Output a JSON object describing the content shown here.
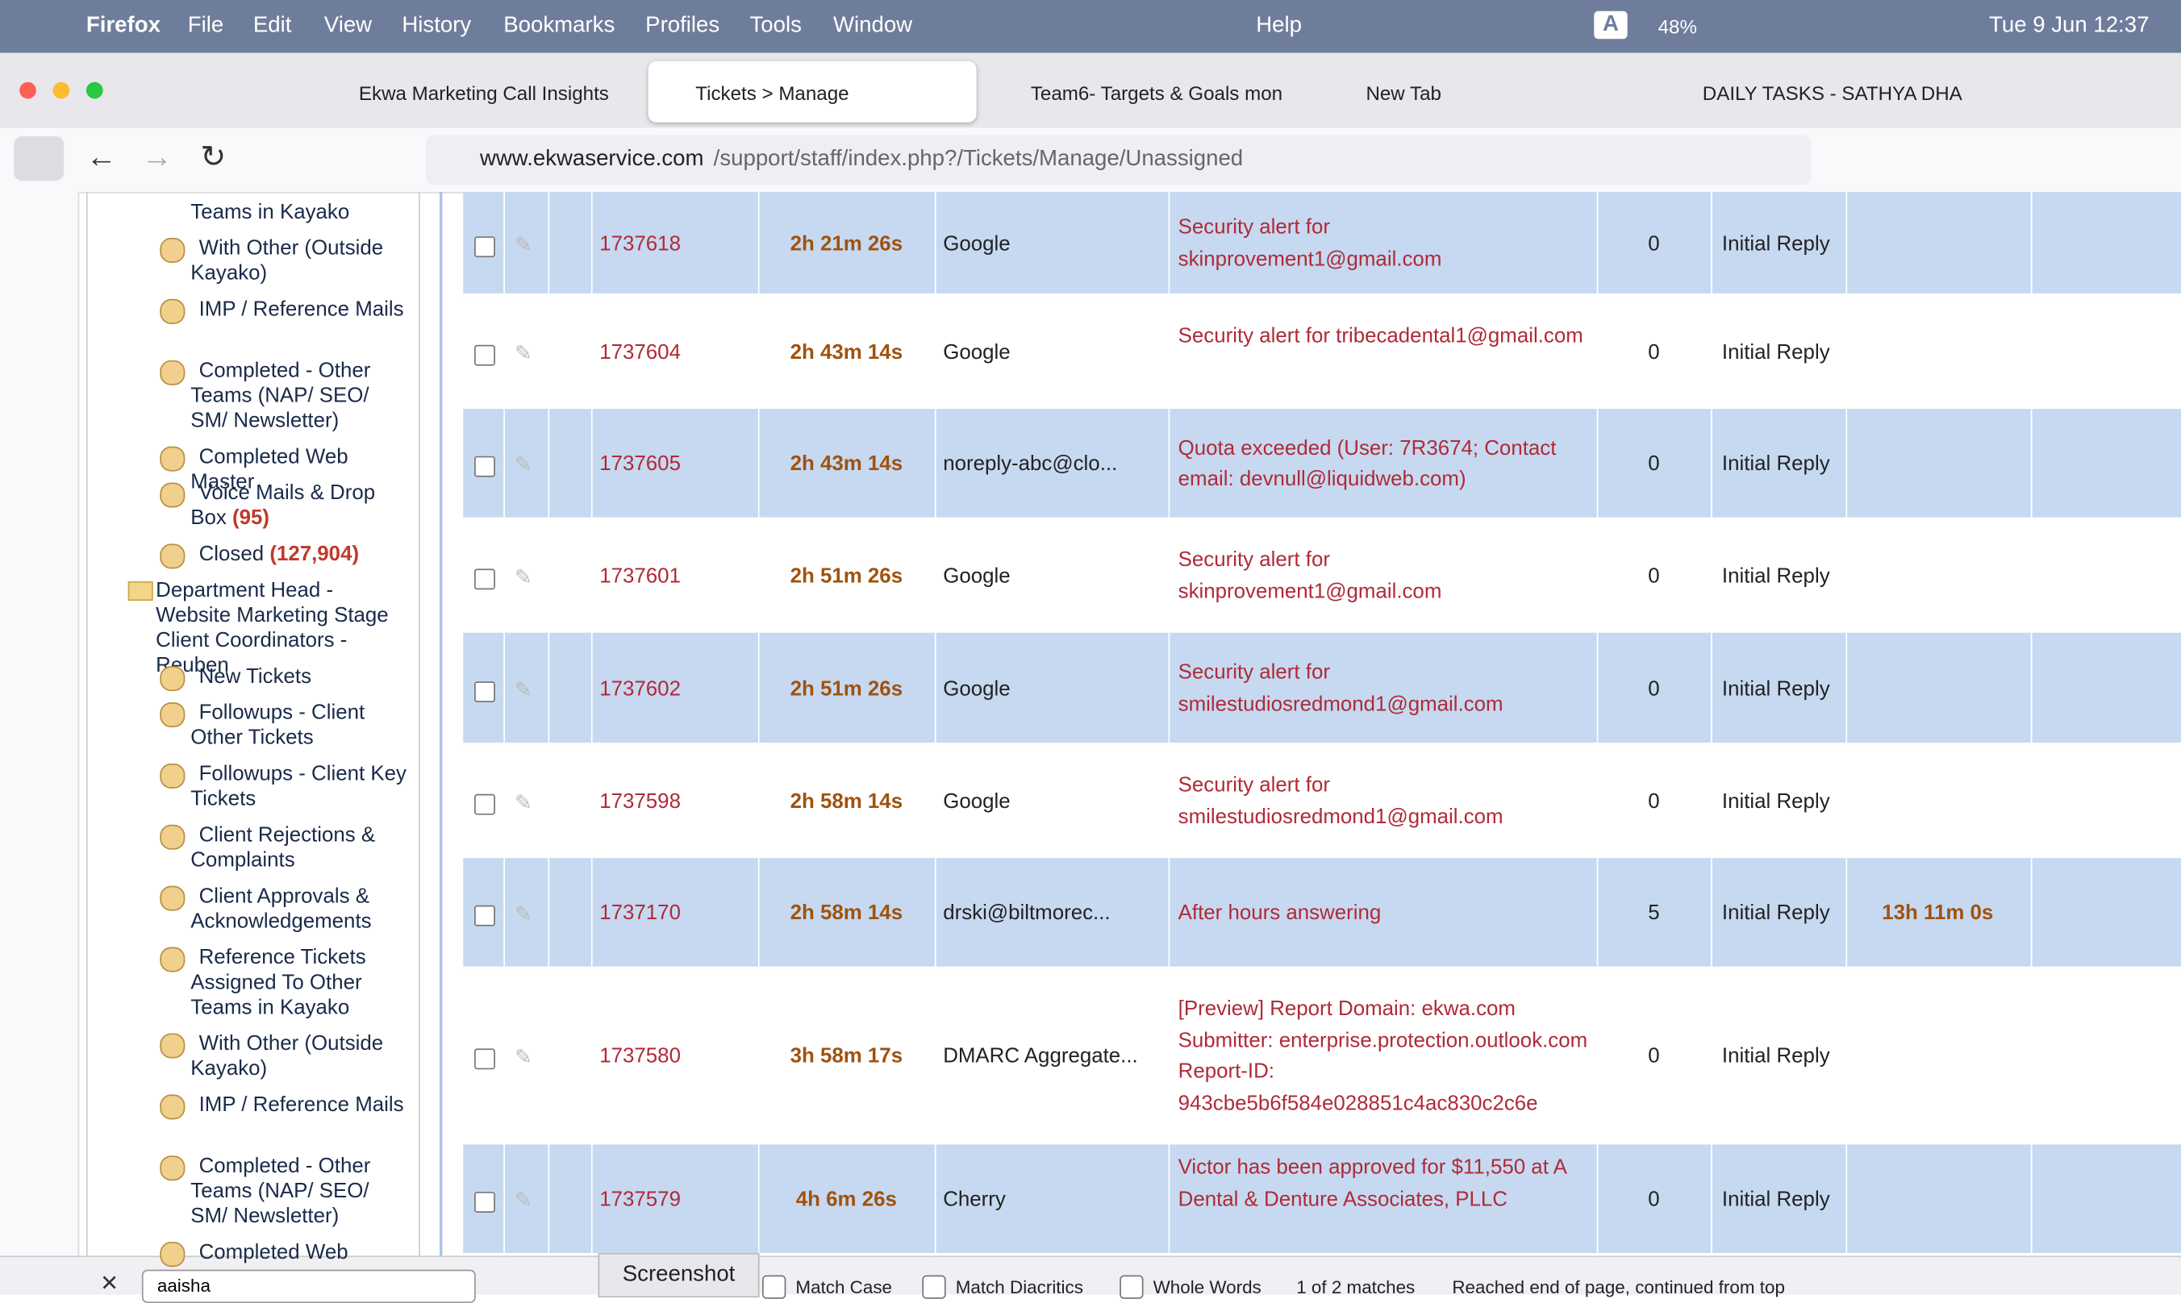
{
  "menu_bar": {
    "app": "Firefox",
    "items": [
      "File",
      "Edit",
      "View",
      "History",
      "Bookmarks",
      "Profiles",
      "Tools",
      "Window"
    ],
    "help": "Help",
    "input_source": "A",
    "battery": "48%",
    "datetime": "Tue 9 Jun  12:37"
  },
  "tabs": [
    "Ekwa Marketing Call Insights",
    "Tickets > Manage",
    "Team6- Targets & Goals mon",
    "New Tab",
    "DAILY TASKS - SATHYA DHA"
  ],
  "url": {
    "domain": "www.ekwaservice.com",
    "path": "/support/staff/index.php?/Tickets/Manage/Unassigned"
  },
  "tree": [
    {
      "label": "Teams in Kayako",
      "cont": true
    },
    {
      "label": "With Other (Outside Kayako)"
    },
    {
      "label": "IMP / Reference Mails"
    },
    {
      "label": "Completed - Other Teams (NAP/ SEO/ SM/ Newsletter)"
    },
    {
      "label": "Completed Web Master"
    },
    {
      "label": "Voice Mails & Drop Box",
      "count": "(95)"
    },
    {
      "label": "Closed",
      "count": "(127,904)"
    },
    {
      "label": "Department Head - Website Marketing Stage Client Coordinators - Reuben",
      "folder": true
    },
    {
      "label": "New Tickets"
    },
    {
      "label": "Followups - Client Other Tickets"
    },
    {
      "label": "Followups - Client Key Tickets"
    },
    {
      "label": "Client Rejections & Complaints"
    },
    {
      "label": "Client Approvals & Acknowledgements"
    },
    {
      "label": "Reference Tickets Assigned To Other Teams in Kayako"
    },
    {
      "label": "With Other (Outside Kayako)"
    },
    {
      "label": "IMP / Reference Mails"
    },
    {
      "label": "Completed - Other Teams (NAP/ SEO/ SM/ Newsletter)"
    },
    {
      "label": "Completed Web"
    }
  ],
  "table": {
    "rows": [
      [
        "1737618",
        "2h 21m 26s",
        "Google",
        "Security alert for skinprovement1@gmail.com",
        "0",
        "Initial Reply",
        ""
      ],
      [
        "1737604",
        "2h 43m 14s",
        "Google",
        "Security alert for tribecadental1@gmail.com",
        "0",
        "Initial Reply",
        ""
      ],
      [
        "1737605",
        "2h 43m 14s",
        "noreply-abc@clo...",
        "Quota exceeded (User: 7R3674; Contact email: devnull@liquidweb.com)",
        "0",
        "Initial Reply",
        ""
      ],
      [
        "1737601",
        "2h 51m 26s",
        "Google",
        "Security alert for skinprovement1@gmail.com",
        "0",
        "Initial Reply",
        ""
      ],
      [
        "1737602",
        "2h 51m 26s",
        "Google",
        "Security alert for smilestudiosredmond1@gmail.com",
        "0",
        "Initial Reply",
        ""
      ],
      [
        "1737598",
        "2h 58m 14s",
        "Google",
        "Security alert for smilestudiosredmond1@gmail.com",
        "0",
        "Initial Reply",
        ""
      ],
      [
        "1737170",
        "2h 58m 14s",
        "drski@biltmorec...",
        "After hours answering",
        "5",
        "Initial Reply",
        "13h 11m 0s"
      ],
      [
        "1737580",
        "3h 58m 17s",
        "DMARC Aggregate...",
        "[Preview] Report Domain: ekwa.com Submitter: enterprise.protection.outlook.com Report-ID: 943cbe5b6f584e028851c4ac830c2c6e",
        "0",
        "Initial Reply",
        ""
      ],
      [
        "1737579",
        "4h 6m 26s",
        "Cherry",
        "Victor has been approved for $11,550 at A Dental & Denture Associates, PLLC",
        "0",
        "Initial Reply",
        ""
      ]
    ]
  },
  "find_bar": {
    "query": "aaisha",
    "tooltip": "Screenshot",
    "options": [
      "Match Case",
      "Match Diacritics",
      "Whole Words"
    ],
    "matches": "1 of 2 matches",
    "status": "Reached end of page, continued from top"
  }
}
